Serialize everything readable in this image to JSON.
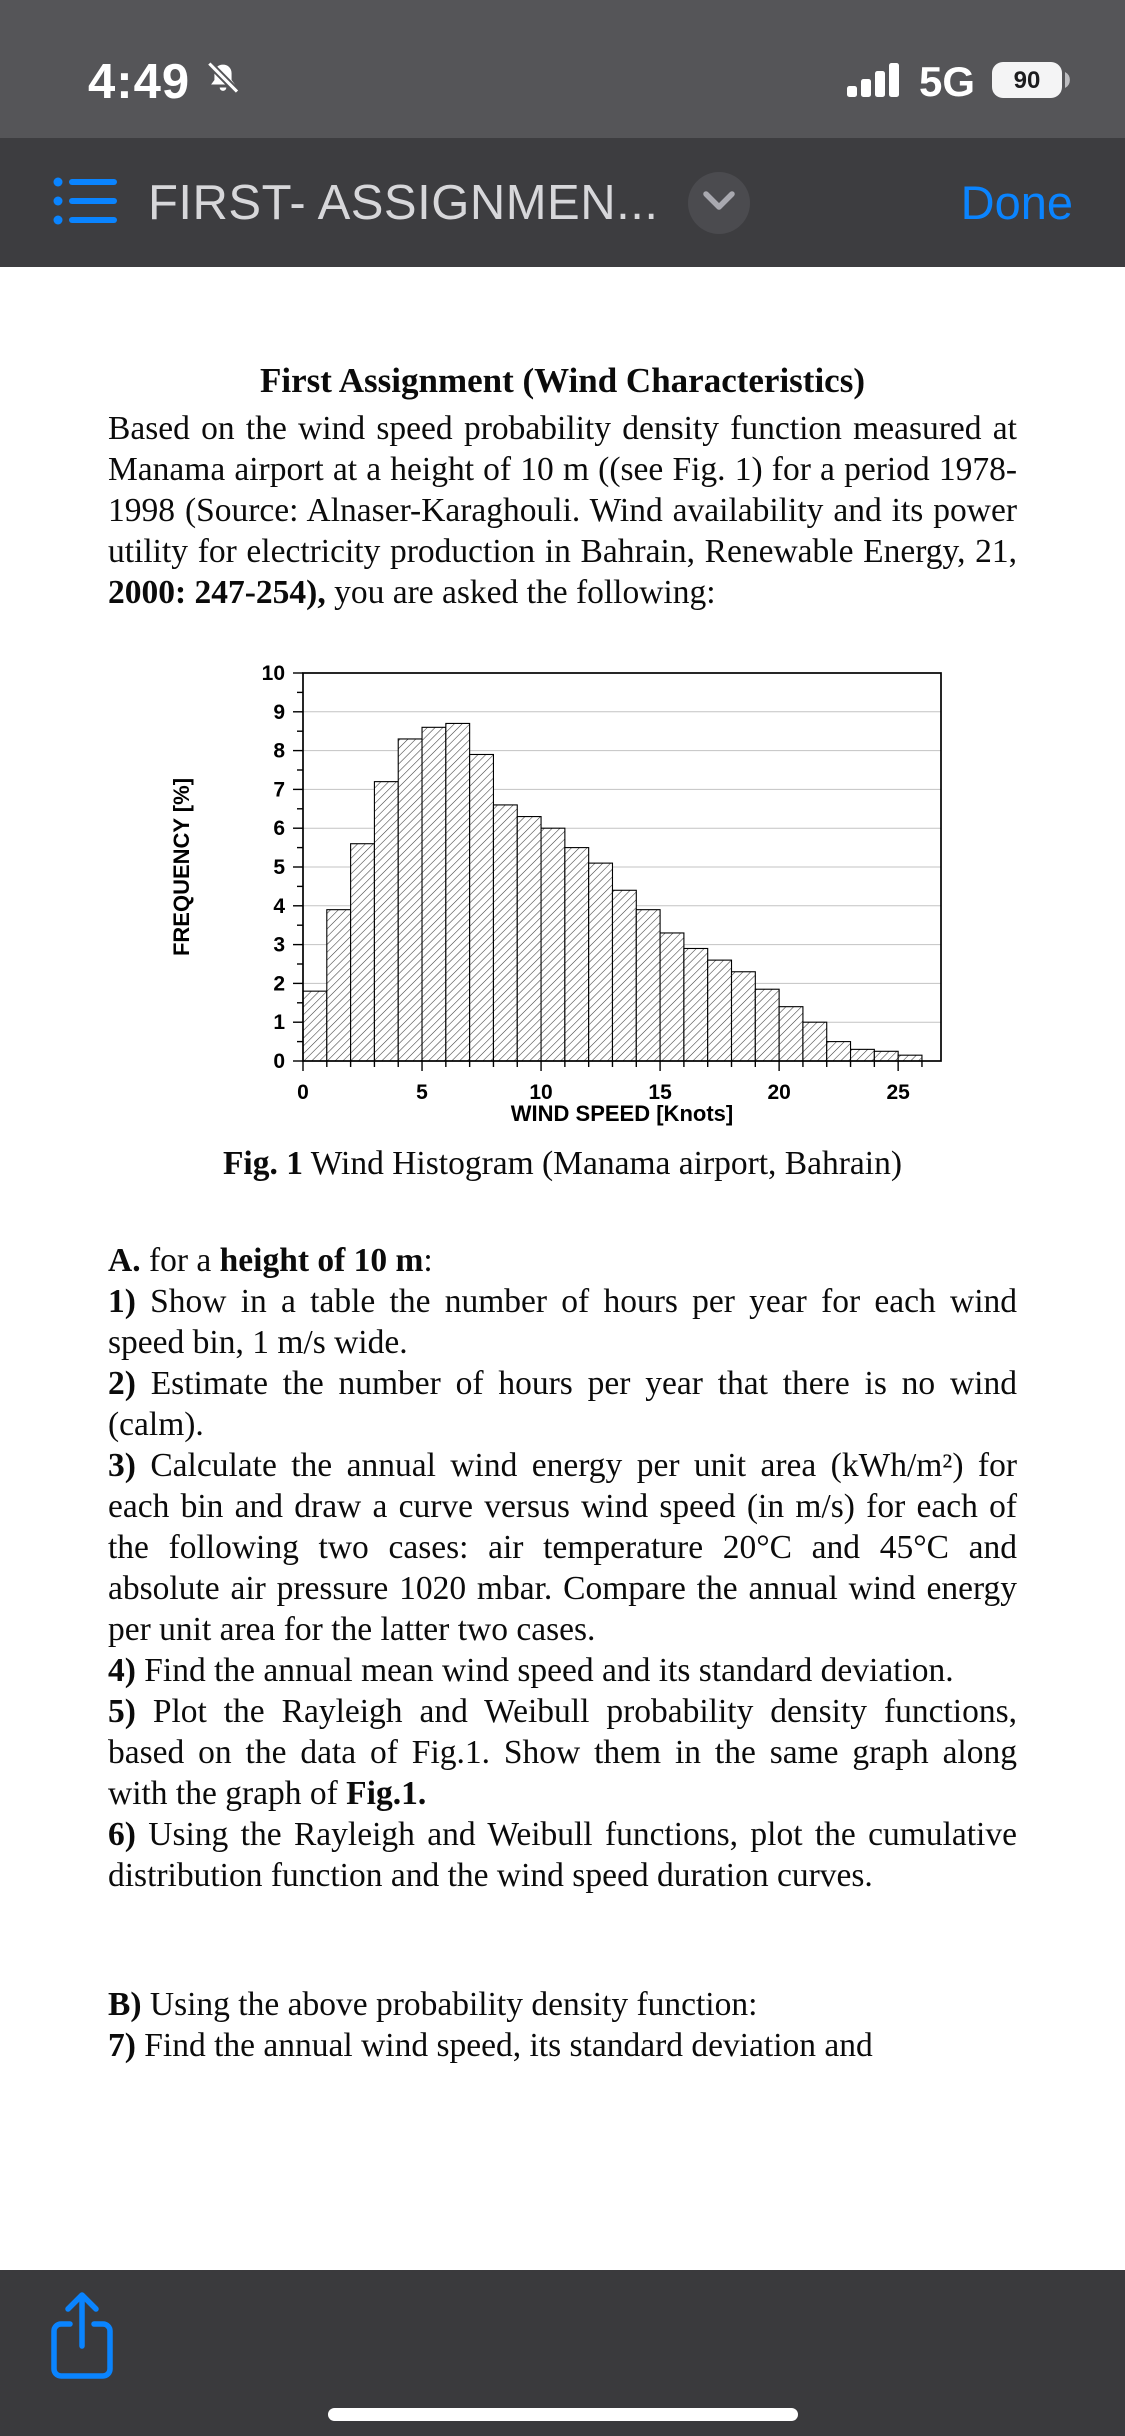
{
  "status_bar": {
    "time": "4:49",
    "network": "5G",
    "battery_percent": "90"
  },
  "toolbar": {
    "title": "FIRST- ASSIGNMEN...",
    "done_label": "Done"
  },
  "colors": {
    "accent_blue": "#0a84ff",
    "header_gray": "#3d3d40",
    "status_gray": "#555558",
    "bottom_bar_gray": "#3a3a3d"
  },
  "document": {
    "heading": "First Assignment (Wind Characteristics)",
    "paragraphs": {
      "intro": [
        {
          "text": "Based on the wind speed probability density function measured at Manama airport at a height of 10 m ((see Fig. 1) for a period 1978-1998 (Source: Alnaser-Karaghouli. Wind availability and its power utility for electricity production in Bahrain, Renewable Energy, 21, ",
          "bold": false
        },
        {
          "text": "2000: 247-254),",
          "bold": true
        },
        {
          "text": " you are asked the following:",
          "bold": false
        }
      ],
      "section_a": [
        {
          "text": "A.",
          "bold": true
        },
        {
          "text": " for a ",
          "bold": false
        },
        {
          "text": "height of 10 m",
          "bold": true
        },
        {
          "text": ":",
          "bold": false
        }
      ],
      "item1": [
        {
          "text": "1)",
          "bold": true
        },
        {
          "text": " Show in a table the number of hours per year for each wind speed bin, 1 m/s wide.",
          "bold": false
        }
      ],
      "item2": [
        {
          "text": "2)",
          "bold": true
        },
        {
          "text": " Estimate the number of hours per year that there is no wind (calm).",
          "bold": false
        }
      ],
      "item3": [
        {
          "text": "3)",
          "bold": true
        },
        {
          "text": " Calculate the annual wind energy per unit area (kWh/m²) for each bin and draw a curve versus wind speed (in m/s) for each of the following two cases: air temperature 20°C and 45°C and absolute air pressure 1020 mbar. Compare the annual wind energy per unit area for the latter two cases.",
          "bold": false
        }
      ],
      "item4": [
        {
          "text": "4)",
          "bold": true
        },
        {
          "text": " Find the annual mean wind speed and its standard deviation.",
          "bold": false
        }
      ],
      "item5": [
        {
          "text": "5)",
          "bold": true
        },
        {
          "text": " Plot the Rayleigh and Weibull probability density functions, based on the data of Fig.1. Show them in the same graph along with the graph of ",
          "bold": false
        },
        {
          "text": "Fig.1.",
          "bold": true
        }
      ],
      "item6": [
        {
          "text": "6)",
          "bold": true
        },
        {
          "text": " Using the Rayleigh and Weibull functions, plot the cumulative distribution function and the wind speed duration curves.",
          "bold": false
        }
      ],
      "section_b": [
        {
          "text": "B)",
          "bold": true
        },
        {
          "text": " Using the above probability density function:",
          "bold": false
        }
      ],
      "item7": [
        {
          "text": "7)",
          "bold": true
        },
        {
          "text": " Find the annual wind speed, its standard deviation and",
          "bold": false
        }
      ]
    },
    "figure_caption": [
      {
        "text": "Fig. 1",
        "bold": true
      },
      {
        "text": " Wind Histogram (Manama airport, Bahrain)",
        "bold": false
      }
    ]
  },
  "chart_data": {
    "type": "bar",
    "title": "",
    "xlabel": "WIND SPEED [Knots]",
    "ylabel": "FREQUENCY [%]",
    "x_start": 0,
    "bin_width": 1,
    "values": [
      1.8,
      3.9,
      5.6,
      7.2,
      8.3,
      8.6,
      8.7,
      7.9,
      6.6,
      6.3,
      6.0,
      5.5,
      5.1,
      4.4,
      3.9,
      3.3,
      2.9,
      2.6,
      2.3,
      1.85,
      1.4,
      1.0,
      0.5,
      0.3,
      0.25,
      0.15
    ],
    "xlim": [
      0,
      26.8
    ],
    "ylim": [
      0,
      10
    ],
    "x_ticks": [
      0,
      5,
      10,
      15,
      20,
      25
    ],
    "y_ticks": [
      0,
      1,
      2,
      3,
      4,
      5,
      6,
      7,
      8,
      9,
      10
    ],
    "grid": true,
    "bar_style": "hatched",
    "legend": "none"
  }
}
